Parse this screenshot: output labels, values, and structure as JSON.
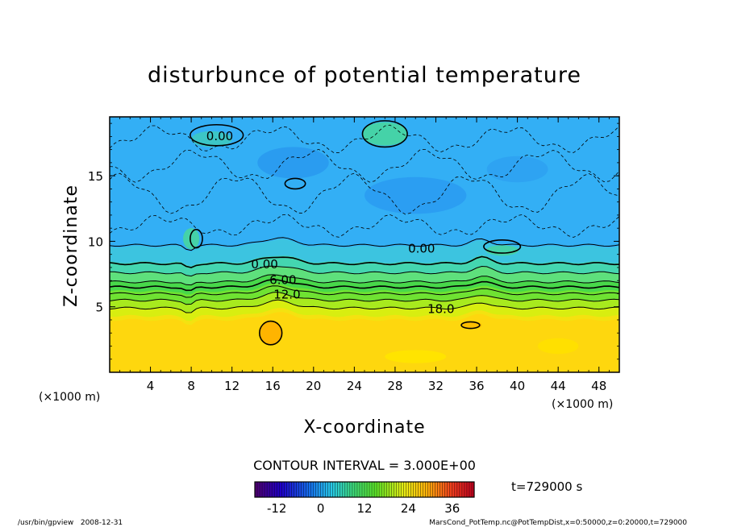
{
  "chart_data": {
    "type": "heatmap",
    "title": "disturbunce of potential temperature",
    "xlabel": "X-coordinate",
    "ylabel": "Z-coordinate",
    "x_unit_left": "(×1000 m)",
    "x_unit_right": "(×1000 m)",
    "xlim": [
      0,
      50
    ],
    "ylim": [
      0,
      19.5
    ],
    "x_ticks": [
      4,
      8,
      12,
      16,
      20,
      24,
      28,
      32,
      36,
      40,
      44,
      48
    ],
    "y_ticks": [
      5,
      10,
      15
    ],
    "contour_labels": [
      {
        "text": "0.00",
        "x": 10.8,
        "z": 18.1
      },
      {
        "text": "0.00",
        "x": 30.6,
        "z": 9.5
      },
      {
        "text": "0.00",
        "x": 15.2,
        "z": 8.3
      },
      {
        "text": "6.00",
        "x": 17.0,
        "z": 7.1
      },
      {
        "text": "12.0",
        "x": 17.4,
        "z": 6.0
      },
      {
        "text": "18.0",
        "x": 32.5,
        "z": 4.9
      }
    ],
    "contour_interval_text": "CONTOUR INTERVAL = 3.000E+00",
    "time_text": "t=729000 s",
    "colorbar": {
      "min": -18,
      "max": 42,
      "ticks": [
        "-12",
        "0",
        "12",
        "24",
        "36"
      ],
      "tick_values": [
        -12,
        0,
        12,
        24,
        36
      ]
    }
  },
  "footer": {
    "left": "/usr/bin/gpview   2008-12-31",
    "right": "MarsCond_PotTemp.nc@PotTempDist,x=0:50000,z=0:20000,t=729000"
  }
}
